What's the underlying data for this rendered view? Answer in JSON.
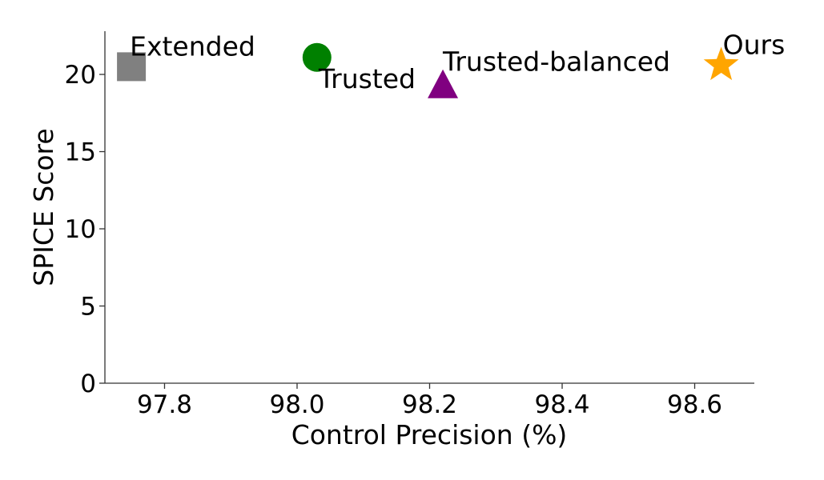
{
  "chart_data": {
    "type": "scatter",
    "title": "",
    "xlabel": "Control Precision (%)",
    "ylabel": "SPICE Score",
    "xlim": [
      97.71,
      98.69
    ],
    "ylim": [
      0,
      22.8
    ],
    "xticks": [
      97.8,
      98.0,
      98.2,
      98.4,
      98.6
    ],
    "xtick_labels": [
      "97.8",
      "98.0",
      "98.2",
      "98.4",
      "98.6"
    ],
    "yticks": [
      0,
      5,
      10,
      15,
      20
    ],
    "ytick_labels": [
      "0",
      "5",
      "10",
      "15",
      "20"
    ],
    "grid": false,
    "legend": "none",
    "points": [
      {
        "label": "Extended",
        "x": 97.75,
        "y": 20.5,
        "marker": "square",
        "color": "#808080"
      },
      {
        "label": "Trusted",
        "x": 98.03,
        "y": 21.1,
        "marker": "circle",
        "color": "#008000"
      },
      {
        "label": "Trusted-balanced",
        "x": 98.22,
        "y": 19.3,
        "marker": "triangle",
        "color": "#800080"
      },
      {
        "label": "Ours",
        "x": 98.64,
        "y": 20.6,
        "marker": "star",
        "color": "#ffa500"
      }
    ]
  }
}
